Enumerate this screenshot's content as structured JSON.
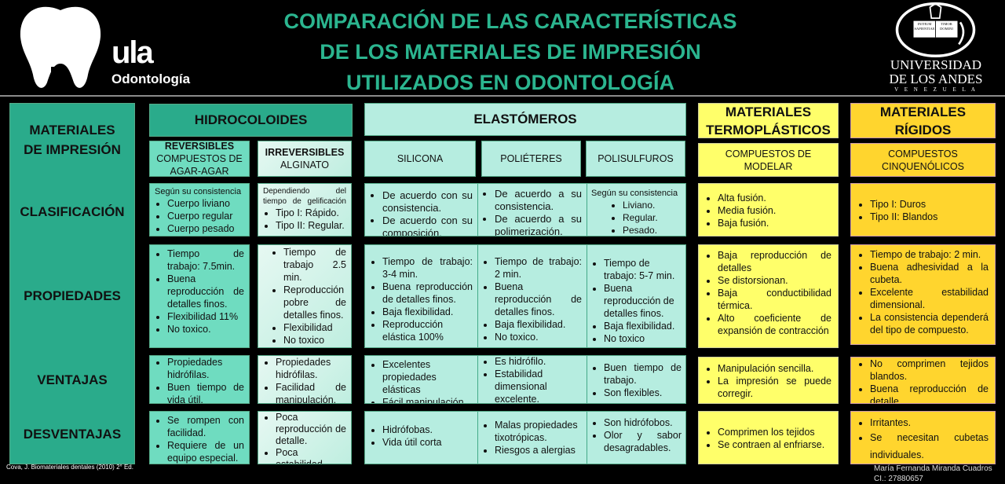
{
  "header": {
    "title_lines": [
      "COMPARACIÓN DE LAS CARACTERÍSTICAS",
      "DE LOS MATERIALES DE IMPRESIÓN",
      "UTILIZADOS EN ODONTOLOGÍA"
    ],
    "logo_left": {
      "brand": "ula",
      "sub": "Odontología"
    },
    "logo_right": {
      "lines": [
        "UNIVERSIDAD",
        "DE LOS ANDES",
        "V E N E Z U E L A"
      ],
      "book": [
        "INITIUM SAPIENTIAE",
        "TIMOR DOMINI"
      ]
    }
  },
  "colors": {
    "title": "#2bb58f",
    "hidro": "#2aab8b",
    "reversible": "#6fdcc0",
    "elast": "#b6ede0",
    "termo": "#ffff6a",
    "rigid": "#ffd52e"
  },
  "rows": {
    "corner": "MATERIALES DE IMPRESIÓN",
    "clasificacion": "CLASIFICACIÓN",
    "propiedades": "PROPIEDADES",
    "ventajas": "VENTAJAS",
    "desventajas": "DESVENTAJAS"
  },
  "groups": {
    "hidro": "HIDROCOLOIDES",
    "elast": "ELASTÓMEROS",
    "termo": "MATERIALES TERMOPLÁSTICOS",
    "rigid": "MATERIALES RÍGIDOS"
  },
  "subs": {
    "rev_title": "REVERSIBLES",
    "rev_sub": "COMPUESTOS DE AGAR-AGAR",
    "irr_title": "IRREVERSIBLES",
    "irr_sub": "ALGINATO",
    "silicona": "SILICONA",
    "polieteres": "POLIÉTERES",
    "polisulfuros": "POLISULFUROS",
    "termo": "COMPUESTOS DE MODELAR",
    "rigid": "COMPUESTOS CINQUENÓLICOS"
  },
  "clasificacion": {
    "rev": {
      "intro": "Según su consistencia",
      "items": [
        "Cuerpo liviano",
        "Cuerpo regular",
        "Cuerpo pesado"
      ]
    },
    "irr": {
      "intro": "Dependiendo del tiempo de gelificación",
      "items": [
        "Tipo I: Rápido.",
        "Tipo II: Regular."
      ]
    },
    "sil": {
      "items": [
        "De acuerdo con su consistencia.",
        "De acuerdo con su composición."
      ]
    },
    "pol": {
      "items": [
        "De acuerdo a su consistencia.",
        "De acuerdo a su polimerización."
      ]
    },
    "psf": {
      "intro": "Según su consistencia",
      "items": [
        "Liviano.",
        "Regular.",
        "Pesado."
      ]
    },
    "termo": {
      "items": [
        "Alta fusión.",
        "Media fusión.",
        "Baja fusión."
      ]
    },
    "rigid": {
      "items": [
        "Tipo I: Duros",
        "Tipo II: Blandos"
      ]
    }
  },
  "propiedades": {
    "rev": [
      "Tiempo de trabajo: 7.5min.",
      "Buena reproducción de detalles finos.",
      "Flexibilidad 11%",
      "No toxico."
    ],
    "irr": [
      "Tiempo de trabajo 2.5 min.",
      "Reproducción pobre de detalles finos.",
      "Flexibilidad",
      "No toxico"
    ],
    "sil": [
      "Tiempo de trabajo: 3-4 min.",
      "Buena reproducción de detalles finos.",
      "Baja flexibilidad.",
      "Reproducción elástica 100%"
    ],
    "pol": [
      "Tiempo de trabajo: 2 min.",
      "Buena reproducción de detalles finos.",
      "Baja flexibilidad.",
      "No toxico."
    ],
    "psf": [
      "Tiempo de trabajo: 5-7 min.",
      "Buena reproducción de detalles finos.",
      "Baja flexibilidad.",
      "No toxico"
    ],
    "termo": [
      "Baja reproducción de detalles",
      "Se distorsionan.",
      "Baja conductibilidad térmica.",
      "Alto coeficiente de expansión de contracción"
    ],
    "rigid": [
      "Tiempo de trabajo: 2 min.",
      "Buena adhesividad a la cubeta.",
      "Excelente estabilidad dimensional.",
      "La consistencia dependerá del tipo de compuesto."
    ]
  },
  "ventajas": {
    "rev": [
      "Propiedades hidrófilas.",
      "Buen tiempo de vida útil."
    ],
    "irr": [
      "Propiedades hidrófilas.",
      "Facilidad de manipulación."
    ],
    "sil": [
      "Excelentes propiedades elásticas",
      "Fácil manipulación."
    ],
    "pol": [
      "Es hidrófilo.",
      "Estabilidad dimensional excelente."
    ],
    "psf": [
      "Buen tiempo de trabajo.",
      "Son flexibles."
    ],
    "termo": [
      "Manipulación sencilla.",
      "La impresión se puede corregir."
    ],
    "rigid": [
      "No comprimen tejidos blandos.",
      "Buena reproducción de detalle."
    ]
  },
  "desventajas": {
    "rev": [
      "Se rompen con facilidad.",
      "Requiere de un equipo especial."
    ],
    "irr": [
      "Poca reproducción de detalle.",
      "Poca estabilidad dimensional"
    ],
    "sil": [
      "Hidrófobas.",
      "Vida útil corta"
    ],
    "pol": [
      "Malas propiedades tixotrópicas.",
      "Riesgos a alergias"
    ],
    "psf": [
      "Son hidrófobos.",
      "Olor y sabor desagradables."
    ],
    "termo": [
      "Comprimen los tejidos",
      "Se contraen al enfriarse."
    ],
    "rigid": [
      "Irritantes.",
      "Se necesitan cubetas individuales."
    ]
  },
  "footer": {
    "reference": "Cova, J. Biomateriales dentales (2010) 2° Ed.",
    "author": "María Fernanda Miranda Cuadros",
    "id": "CI.: 27880657"
  }
}
